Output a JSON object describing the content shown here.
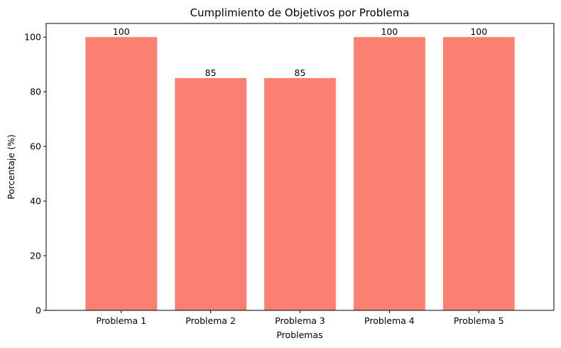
{
  "chart_data": {
    "type": "bar",
    "title": "Cumplimiento de Objetivos por Problema",
    "xlabel": "Problemas",
    "ylabel": "Porcentaje (%)",
    "categories": [
      "Problema 1",
      "Problema 2",
      "Problema 3",
      "Problema 4",
      "Problema 5"
    ],
    "values": [
      100,
      85,
      85,
      100,
      100
    ],
    "data_labels": [
      "100",
      "85",
      "85",
      "100",
      "100"
    ],
    "ylim": [
      0,
      105
    ],
    "yticks": [
      0,
      20,
      40,
      60,
      80,
      100
    ],
    "bar_color": "#fa8072",
    "grid": false,
    "legend": false
  }
}
